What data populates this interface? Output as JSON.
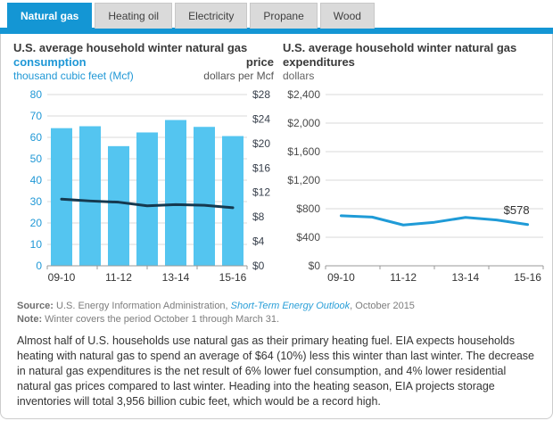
{
  "colors": {
    "accent": "#1496d4",
    "bar_fill": "#54c5f0",
    "price_line": "#15394f",
    "expenditure_line": "#1f9bd7",
    "blue_text": "#2098d6",
    "grid": "#d8d8d8",
    "axis": "#999999",
    "dark_label": "#39414d",
    "gray_label": "#4a4a4a"
  },
  "tabs": [
    {
      "id": "natural-gas",
      "label": "Natural gas",
      "active": true
    },
    {
      "id": "heating-oil",
      "label": "Heating oil",
      "active": false
    },
    {
      "id": "electricity",
      "label": "Electricity",
      "active": false
    },
    {
      "id": "propane",
      "label": "Propane",
      "active": false
    },
    {
      "id": "wood",
      "label": "Wood",
      "active": false
    }
  ],
  "charts": {
    "left": {
      "title": "U.S. average household winter natural gas",
      "series1_label": "consumption",
      "series2_label": "price",
      "left_unit": "thousand  cubic feet (Mcf)",
      "right_unit": "dollars  per  Mcf"
    },
    "right": {
      "title": "U.S. average household winter natural gas expenditures",
      "unit": "dollars"
    }
  },
  "chart_data": [
    {
      "type": "bar",
      "title": "U.S. average household winter natural gas consumption and price",
      "categories": [
        "09-10",
        "10-11",
        "11-12",
        "12-13",
        "13-14",
        "14-15",
        "15-16"
      ],
      "x_tick_labels": [
        "09-10",
        "11-12",
        "13-14",
        "15-16"
      ],
      "x_tick_label_slots": [
        0,
        2,
        4,
        6
      ],
      "series": [
        {
          "name": "consumption",
          "type": "bar",
          "axis": "left",
          "unit": "thousand cubic feet (Mcf)",
          "values": [
            64.3,
            65.2,
            55.9,
            62.3,
            68.1,
            64.9,
            60.6
          ]
        },
        {
          "name": "price",
          "type": "line",
          "axis": "right",
          "unit": "dollars per Mcf",
          "values": [
            10.9,
            10.6,
            10.4,
            9.8,
            10.0,
            9.9,
            9.5
          ]
        }
      ],
      "left_ylim": [
        0,
        80
      ],
      "left_tick_values": [
        0,
        10,
        20,
        30,
        40,
        50,
        60,
        70,
        80
      ],
      "left_tick_labels": [
        "0",
        "10",
        "20",
        "30",
        "40",
        "50",
        "60",
        "70",
        "80"
      ],
      "right_ylim": [
        0,
        28
      ],
      "right_tick_values": [
        0,
        4,
        8,
        12,
        16,
        20,
        24,
        28
      ],
      "right_tick_labels": [
        "$0",
        "$4",
        "$8",
        "$12",
        "$16",
        "$20",
        "$24",
        "$28"
      ],
      "grid": true,
      "legend_position": "above-axes"
    },
    {
      "type": "line",
      "title": "U.S. average household winter natural gas expenditures",
      "ylabel": "dollars",
      "categories": [
        "09-10",
        "10-11",
        "11-12",
        "12-13",
        "13-14",
        "14-15",
        "15-16"
      ],
      "x_tick_labels": [
        "09-10",
        "11-12",
        "13-14",
        "15-16"
      ],
      "x_tick_label_slots": [
        0,
        2,
        4,
        6
      ],
      "values": [
        702,
        683,
        572,
        610,
        678,
        642,
        578
      ],
      "ylim": [
        0,
        2400
      ],
      "ytick_values": [
        0,
        400,
        800,
        1200,
        1600,
        2000,
        2400
      ],
      "ytick_labels": [
        "$0",
        "$400",
        "$800",
        "$1,200",
        "$1,600",
        "$2,000",
        "$2,400"
      ],
      "grid": true,
      "annotation": {
        "text": "$578",
        "point_index": 6
      }
    }
  ],
  "source": {
    "label": "Source:",
    "text_before_link": " U.S. Energy Information Administration, ",
    "link_text": "Short-Term Energy Outlook",
    "text_after_link": ", October 2015"
  },
  "note": {
    "label": "Note:",
    "text": " Winter covers the period October 1 through March 31."
  },
  "paragraph": "Almost half of U.S. households use natural gas as their primary heating fuel. EIA expects households heating with natural gas to spend an average of $64 (10%) less this winter than last winter. The decrease in natural gas expenditures is the net result of 6% lower fuel consumption, and 4% lower residential natural gas prices compared to last winter. Heading into the heating season, EIA projects storage inventories will total 3,956 billion cubic feet, which would be a record high."
}
